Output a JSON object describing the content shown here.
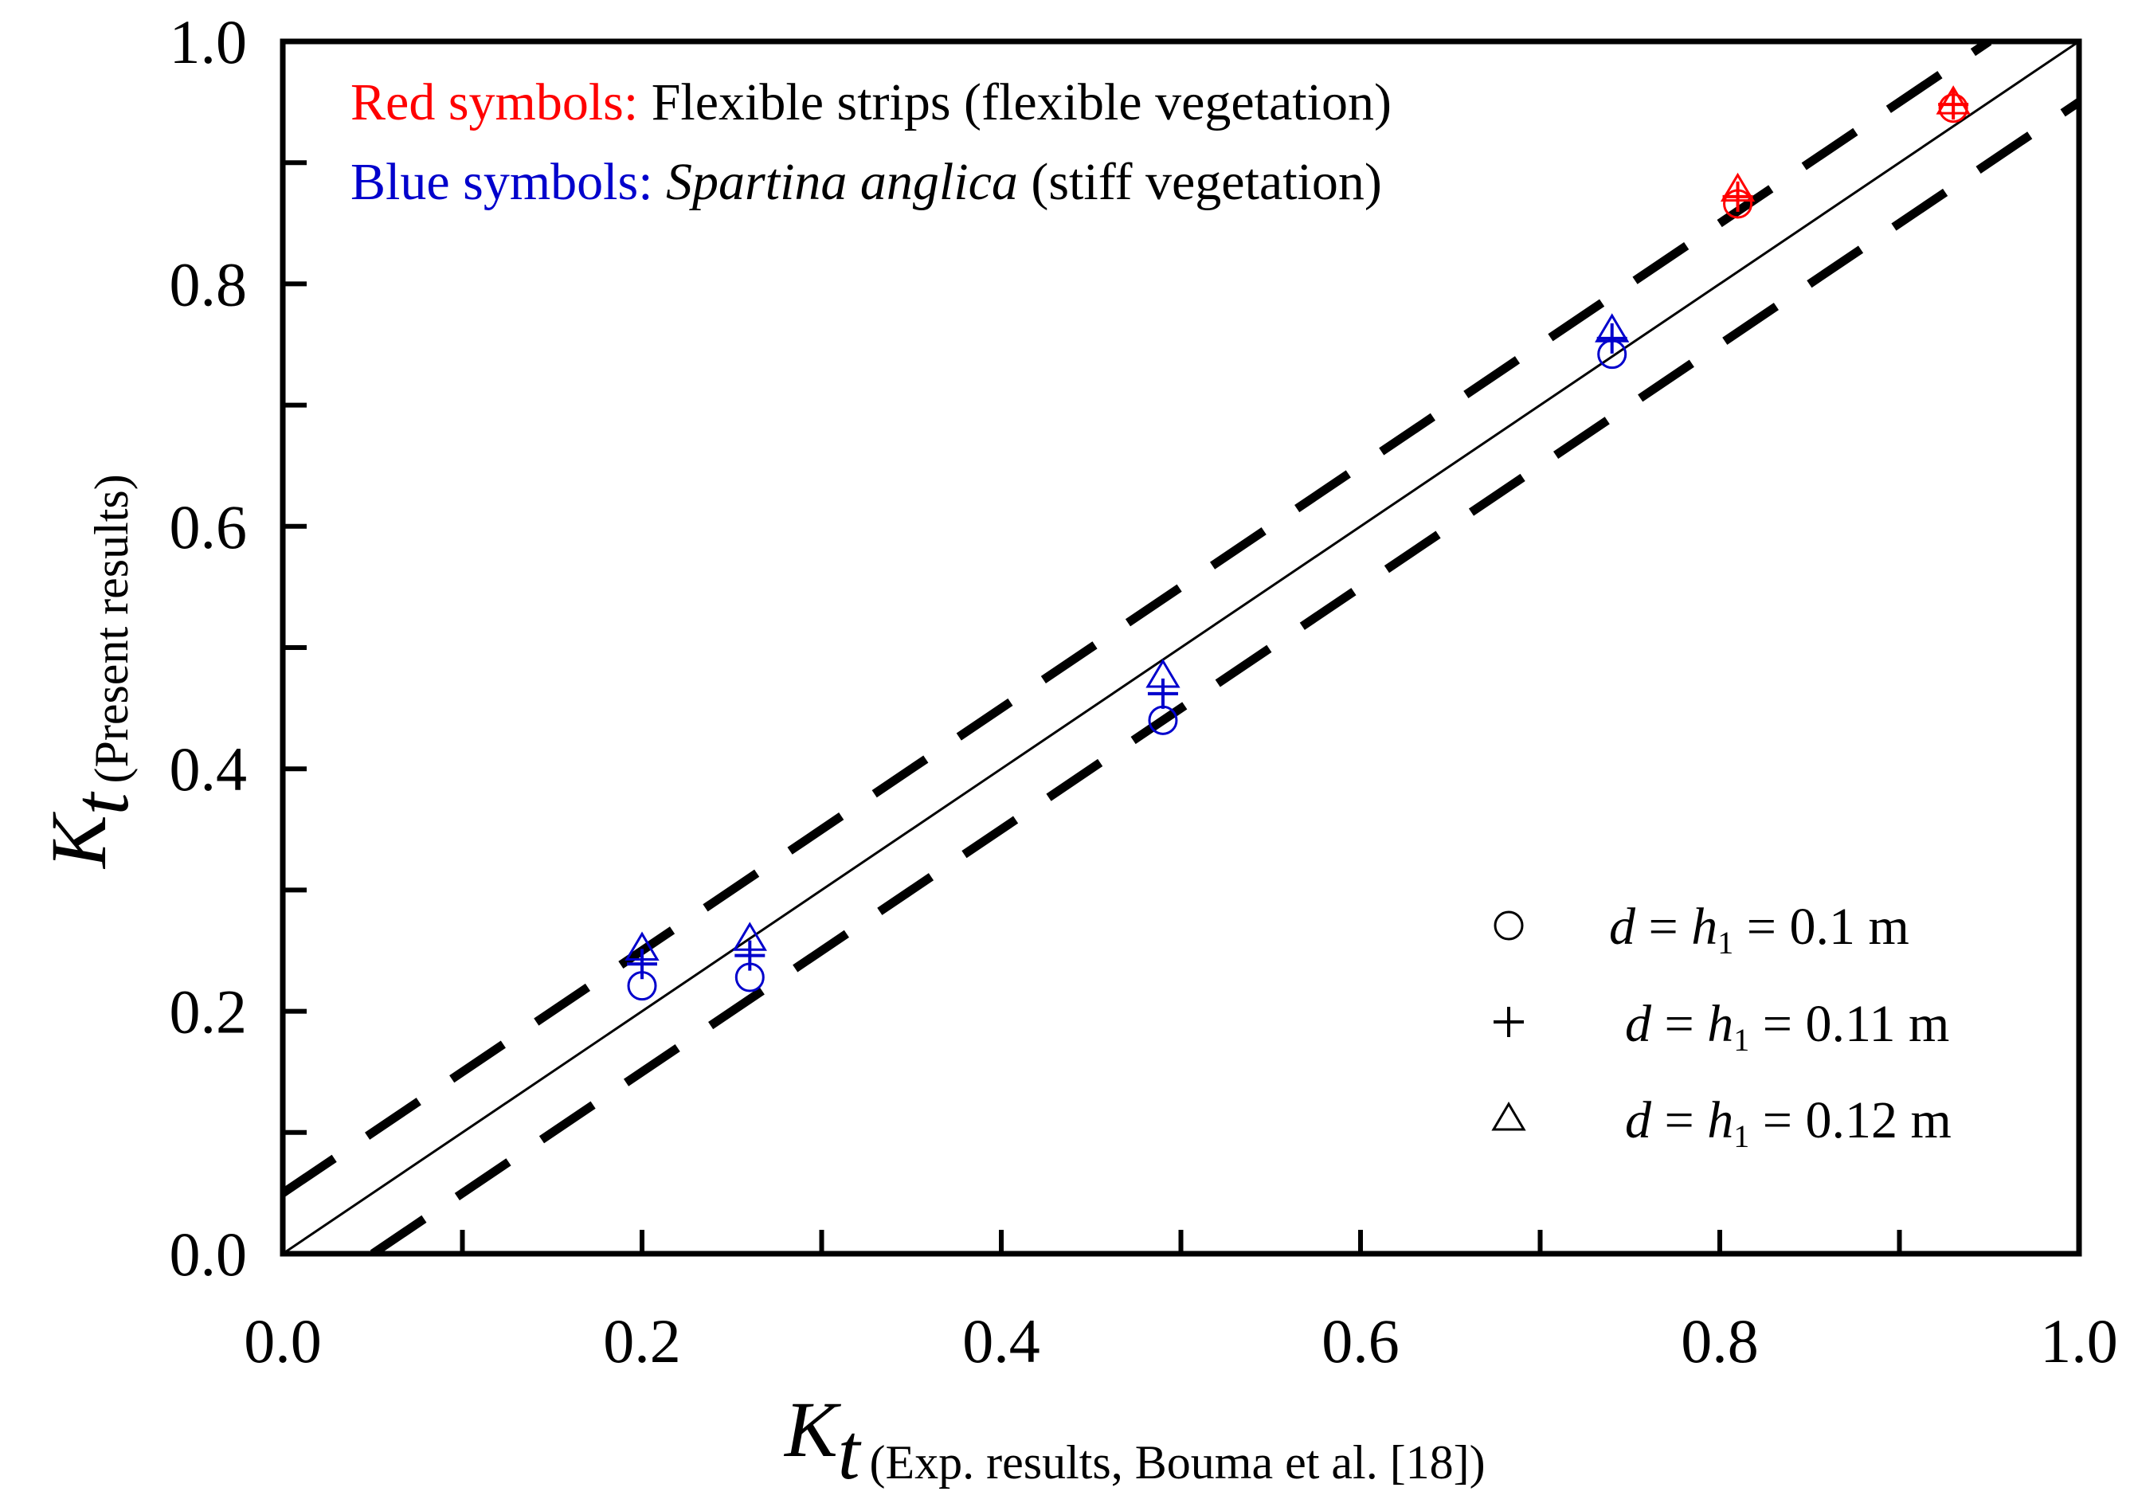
{
  "chart_data": {
    "type": "scatter",
    "title": "",
    "x_axis": {
      "label_main": "K",
      "label_sub": "t",
      "label_detail": "(Exp. results, Bouma et al. [18])",
      "lim": [
        0.0,
        1.0
      ],
      "tick_labels": [
        "0.0",
        "0.2",
        "0.4",
        "0.6",
        "0.8",
        "1.0"
      ],
      "ticks": [
        0.0,
        0.2,
        0.4,
        0.6,
        0.8,
        1.0
      ],
      "minor_ticks": [
        0.1,
        0.3,
        0.5,
        0.7,
        0.9
      ]
    },
    "y_axis": {
      "label_main": "K",
      "label_sub": "t",
      "label_detail": "(Present results)",
      "lim": [
        0.0,
        1.0
      ],
      "tick_labels": [
        "0.0",
        "0.2",
        "0.4",
        "0.6",
        "0.8",
        "1.0"
      ],
      "ticks": [
        0.0,
        0.2,
        0.4,
        0.6,
        0.8,
        1.0
      ],
      "minor_ticks": [
        0.1,
        0.3,
        0.5,
        0.7,
        0.9
      ]
    },
    "notes": [
      {
        "colored": "Red symbols:",
        "color": "#ff0000",
        "rest": [
          {
            "text": " Flexible strips (flexible vegetation)",
            "italic": false
          }
        ]
      },
      {
        "colored": "Blue symbols:",
        "color": "#0000cc",
        "rest": [
          {
            "text": " ",
            "italic": false
          },
          {
            "text": "Spartina anglica",
            "italic": true
          },
          {
            "text": " (stiff vegetation)",
            "italic": false
          }
        ]
      }
    ],
    "legend": {
      "position": "lower-right",
      "entries": [
        {
          "marker": "circle",
          "d": "d",
          "eq": " = ",
          "h": "h",
          "h_sub": "1",
          "value": " = 0.1 m"
        },
        {
          "marker": "plus",
          "d": "d",
          "eq": " = ",
          "h": "h",
          "h_sub": "1",
          "value": " = 0.11 m"
        },
        {
          "marker": "triangle",
          "d": "d",
          "eq": " = ",
          "h": "h",
          "h_sub": "1",
          "value": " = 0.12 m"
        }
      ]
    },
    "reference_lines": [
      {
        "name": "y = x",
        "style": "solid",
        "intercept": 0.0
      },
      {
        "name": "y = x + 0.05",
        "style": "dashed",
        "intercept": 0.05
      },
      {
        "name": "y = x - 0.05",
        "style": "dashed",
        "intercept": -0.05
      }
    ],
    "series": [
      {
        "name": "flexible, d = h1 = 0.1 m",
        "group": "red",
        "color": "#ff0000",
        "marker": "circle",
        "x": [
          0.81,
          0.93
        ],
        "y": [
          0.866,
          0.945
        ]
      },
      {
        "name": "flexible, d = h1 = 0.11 m",
        "group": "red",
        "color": "#ff0000",
        "marker": "plus",
        "x": [
          0.81,
          0.93
        ],
        "y": [
          0.872,
          0.948
        ]
      },
      {
        "name": "flexible, d = h1 = 0.12 m",
        "group": "red",
        "color": "#ff0000",
        "marker": "triangle",
        "x": [
          0.81,
          0.93
        ],
        "y": [
          0.878,
          0.95
        ]
      },
      {
        "name": "stiff, d = h1 = 0.1 m",
        "group": "blue",
        "color": "#0000cc",
        "marker": "circle",
        "x": [
          0.2,
          0.26,
          0.49,
          0.74
        ],
        "y": [
          0.221,
          0.228,
          0.44,
          0.742
        ]
      },
      {
        "name": "stiff, d = h1 = 0.11 m",
        "group": "blue",
        "color": "#0000cc",
        "marker": "plus",
        "x": [
          0.2,
          0.26,
          0.49,
          0.74
        ],
        "y": [
          0.239,
          0.246,
          0.462,
          0.755
        ]
      },
      {
        "name": "stiff, d = h1 = 0.12 m",
        "group": "blue",
        "color": "#0000cc",
        "marker": "triangle",
        "x": [
          0.2,
          0.26,
          0.49,
          0.74
        ],
        "y": [
          0.252,
          0.26,
          0.477,
          0.762
        ]
      }
    ],
    "grid": false
  }
}
